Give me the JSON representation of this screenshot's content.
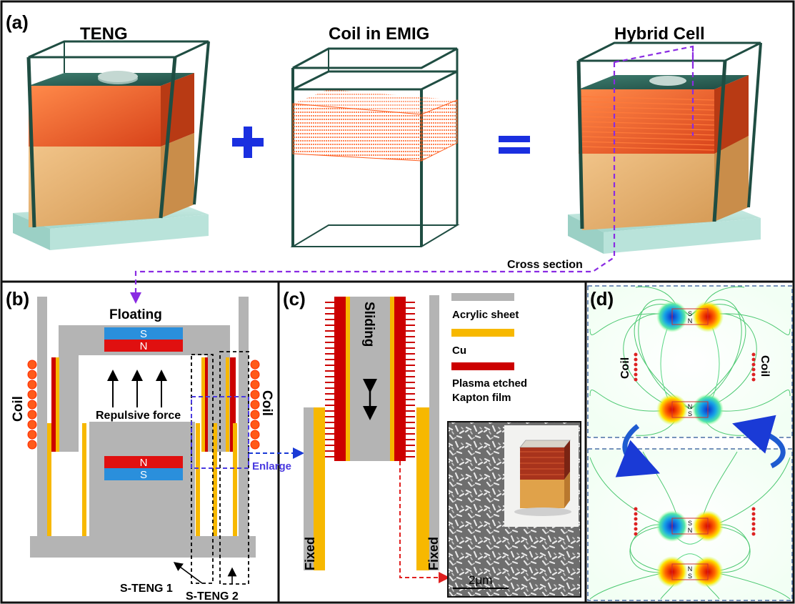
{
  "panel_a": {
    "tag": "(a)",
    "titles": {
      "teng": "TENG",
      "coil": "Coil in EMIG",
      "hybrid": "Hybrid Cell"
    },
    "plus_symbol": "+",
    "equals_symbol": "=",
    "cross_section_label": "Cross section"
  },
  "panel_b": {
    "tag": "(b)",
    "floating_label": "Floating",
    "top_magnet": {
      "upper": "S",
      "lower": "N"
    },
    "bottom_magnet": {
      "upper": "N",
      "lower": "S"
    },
    "repulsive_force_label": "Repulsive force",
    "coil_left": "Coil",
    "coil_right": "Coil",
    "enlarge_label": "Enlarge",
    "s_teng_1": "S-TENG 1",
    "s_teng_2": "S-TENG 2"
  },
  "panel_c": {
    "tag": "(c)",
    "sliding_label": "Sliding",
    "fixed_left": "Fixed",
    "fixed_right": "Fixed",
    "legend": [
      {
        "label": "Acrylic sheet",
        "color": "#b4b4b4"
      },
      {
        "label": "Cu",
        "color": "#f7b800"
      },
      {
        "label": "Plasma etched",
        "label2": "Kapton film",
        "color": "#cc0000"
      }
    ],
    "scale_bar": "2μm"
  },
  "panel_d": {
    "tag": "(d)",
    "coil_label": "Coil",
    "magnet_top": {
      "s": "S",
      "n": "N"
    },
    "magnet_bottom": {
      "n": "N",
      "s": "S"
    }
  },
  "colors": {
    "magnet_blue": "#2a8fdc",
    "magnet_red": "#e01010",
    "copper": "#f7b800",
    "kapton": "#cc0000",
    "acrylic": "#b4b4b4",
    "coil_orange": "#ff5a1a",
    "guide_purple": "#8a2be2",
    "enlarge_blue": "#1a3ad6",
    "pointer_red": "#e02020",
    "flip_arrow": "#1f5bd0"
  }
}
